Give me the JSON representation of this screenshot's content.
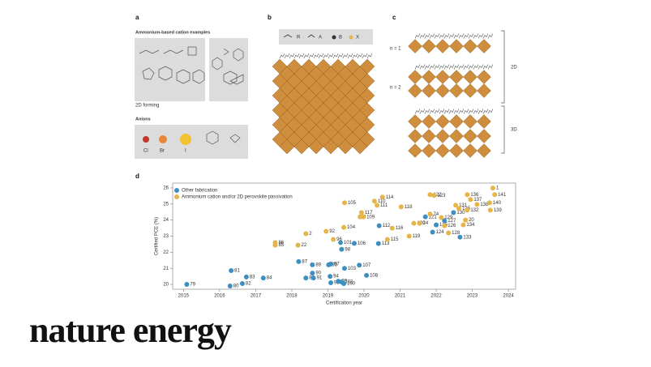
{
  "figure": {
    "panel_a": {
      "letter": "a",
      "title": "Ammonium-based cation examples",
      "caption": "2D forming",
      "anions_title": "Anions",
      "anions": [
        "Cl",
        "Br",
        "I"
      ]
    },
    "panel_b": {
      "letter": "b",
      "legend": [
        "R",
        "A",
        "B",
        "X"
      ]
    },
    "panel_c": {
      "letter": "c",
      "rows": [
        "n = 1",
        "n = 2"
      ],
      "brackets": [
        "2D",
        "3D"
      ]
    },
    "panel_d": {
      "letter": "d"
    },
    "logo": "nature energy"
  },
  "chart_data": {
    "type": "scatter",
    "xlabel": "Certification year",
    "ylabel": "Certified PCE (%)",
    "xlim": [
      2014.7,
      2024.2
    ],
    "ylim": [
      19.7,
      26.3
    ],
    "xticks": [
      2015,
      2016,
      2017,
      2018,
      2019,
      2020,
      2021,
      2022,
      2023,
      2024
    ],
    "yticks": [
      20,
      21,
      22,
      23,
      24,
      25,
      26
    ],
    "legend": "top-left",
    "series": [
      {
        "name": "Other fabrication",
        "color": "#3d8fc2",
        "x": [
          2015.09,
          2016.29,
          2016.32,
          2016.63,
          2016.74,
          2017.21,
          2018.19,
          2018.57,
          2018.57,
          2018.39,
          2018.6,
          2019.02,
          2019.08,
          2019.06,
          2019.08,
          2019.29,
          2019.38,
          2019.44,
          2019.38,
          2019.35,
          2019.73,
          2019.46,
          2019.87,
          2020.07,
          2020.42,
          2020.4,
          2021.7,
          2021.9,
          2022.0,
          2022.23,
          2022.48,
          2022.66
        ],
        "values": [
          20.0,
          19.9,
          20.86,
          20.05,
          20.46,
          20.4,
          21.42,
          21.22,
          20.7,
          20.4,
          20.4,
          21.22,
          21.27,
          20.5,
          20.1,
          20.2,
          20.15,
          20.05,
          22.18,
          22.6,
          22.55,
          21.0,
          21.2,
          20.56,
          23.65,
          22.54,
          24.2,
          23.25,
          23.7,
          23.96,
          24.47,
          22.94
        ],
        "labels": [
          "79",
          "80",
          "81",
          "82",
          "83",
          "84",
          "87",
          "89",
          "90",
          "88",
          "91",
          "93",
          "97",
          "94",
          "95",
          "99",
          "102",
          "100",
          "98",
          "101",
          "106",
          "103",
          "107",
          "108",
          "112",
          "113",
          "121",
          "124",
          "125",
          "127",
          "130",
          "133"
        ]
      },
      {
        "name": "Ammonium cation and/or 2D perovskite passivation",
        "color": "#e6b54a",
        "x": [
          2017.54,
          2017.54,
          2018.17,
          2018.39,
          2018.95,
          2019.15,
          2019.44,
          2019.46,
          2019.89,
          2019.98,
          2019.93,
          2020.29,
          2020.36,
          2020.51,
          2020.78,
          2020.65,
          2021.03,
          2021.25,
          2021.38,
          2021.54,
          2021.83,
          2021.83,
          2021.94,
          2022.23,
          2022.14,
          2022.34,
          2022.54,
          2022.63,
          2022.86,
          2022.86,
          2022.95,
          2023.13,
          2022.81,
          2022.75,
          2023.57,
          2023.62,
          2023.48,
          2023.5
        ],
        "values": [
          22.6,
          22.44,
          22.44,
          23.15,
          23.3,
          22.8,
          23.55,
          25.08,
          24.2,
          24.2,
          24.47,
          25.18,
          24.92,
          25.43,
          23.5,
          22.8,
          24.82,
          23.0,
          23.8,
          23.8,
          24.37,
          25.58,
          25.53,
          23.65,
          24.16,
          23.2,
          24.92,
          24.72,
          24.62,
          25.58,
          25.28,
          24.97,
          24.0,
          23.7,
          25.99,
          25.58,
          25.08,
          24.62
        ],
        "labels": [
          "86",
          "85",
          "22",
          "2",
          "92",
          "96",
          "104",
          "105",
          "3",
          "109",
          "117",
          "110",
          "111",
          "114",
          "116",
          "115",
          "118",
          "119",
          "120",
          "24",
          "74",
          "122",
          "123",
          "126",
          "129",
          "128",
          "131",
          "135",
          "132",
          "136",
          "137",
          "138",
          "20",
          "134",
          "1",
          "141",
          "140",
          "139"
        ]
      }
    ]
  }
}
